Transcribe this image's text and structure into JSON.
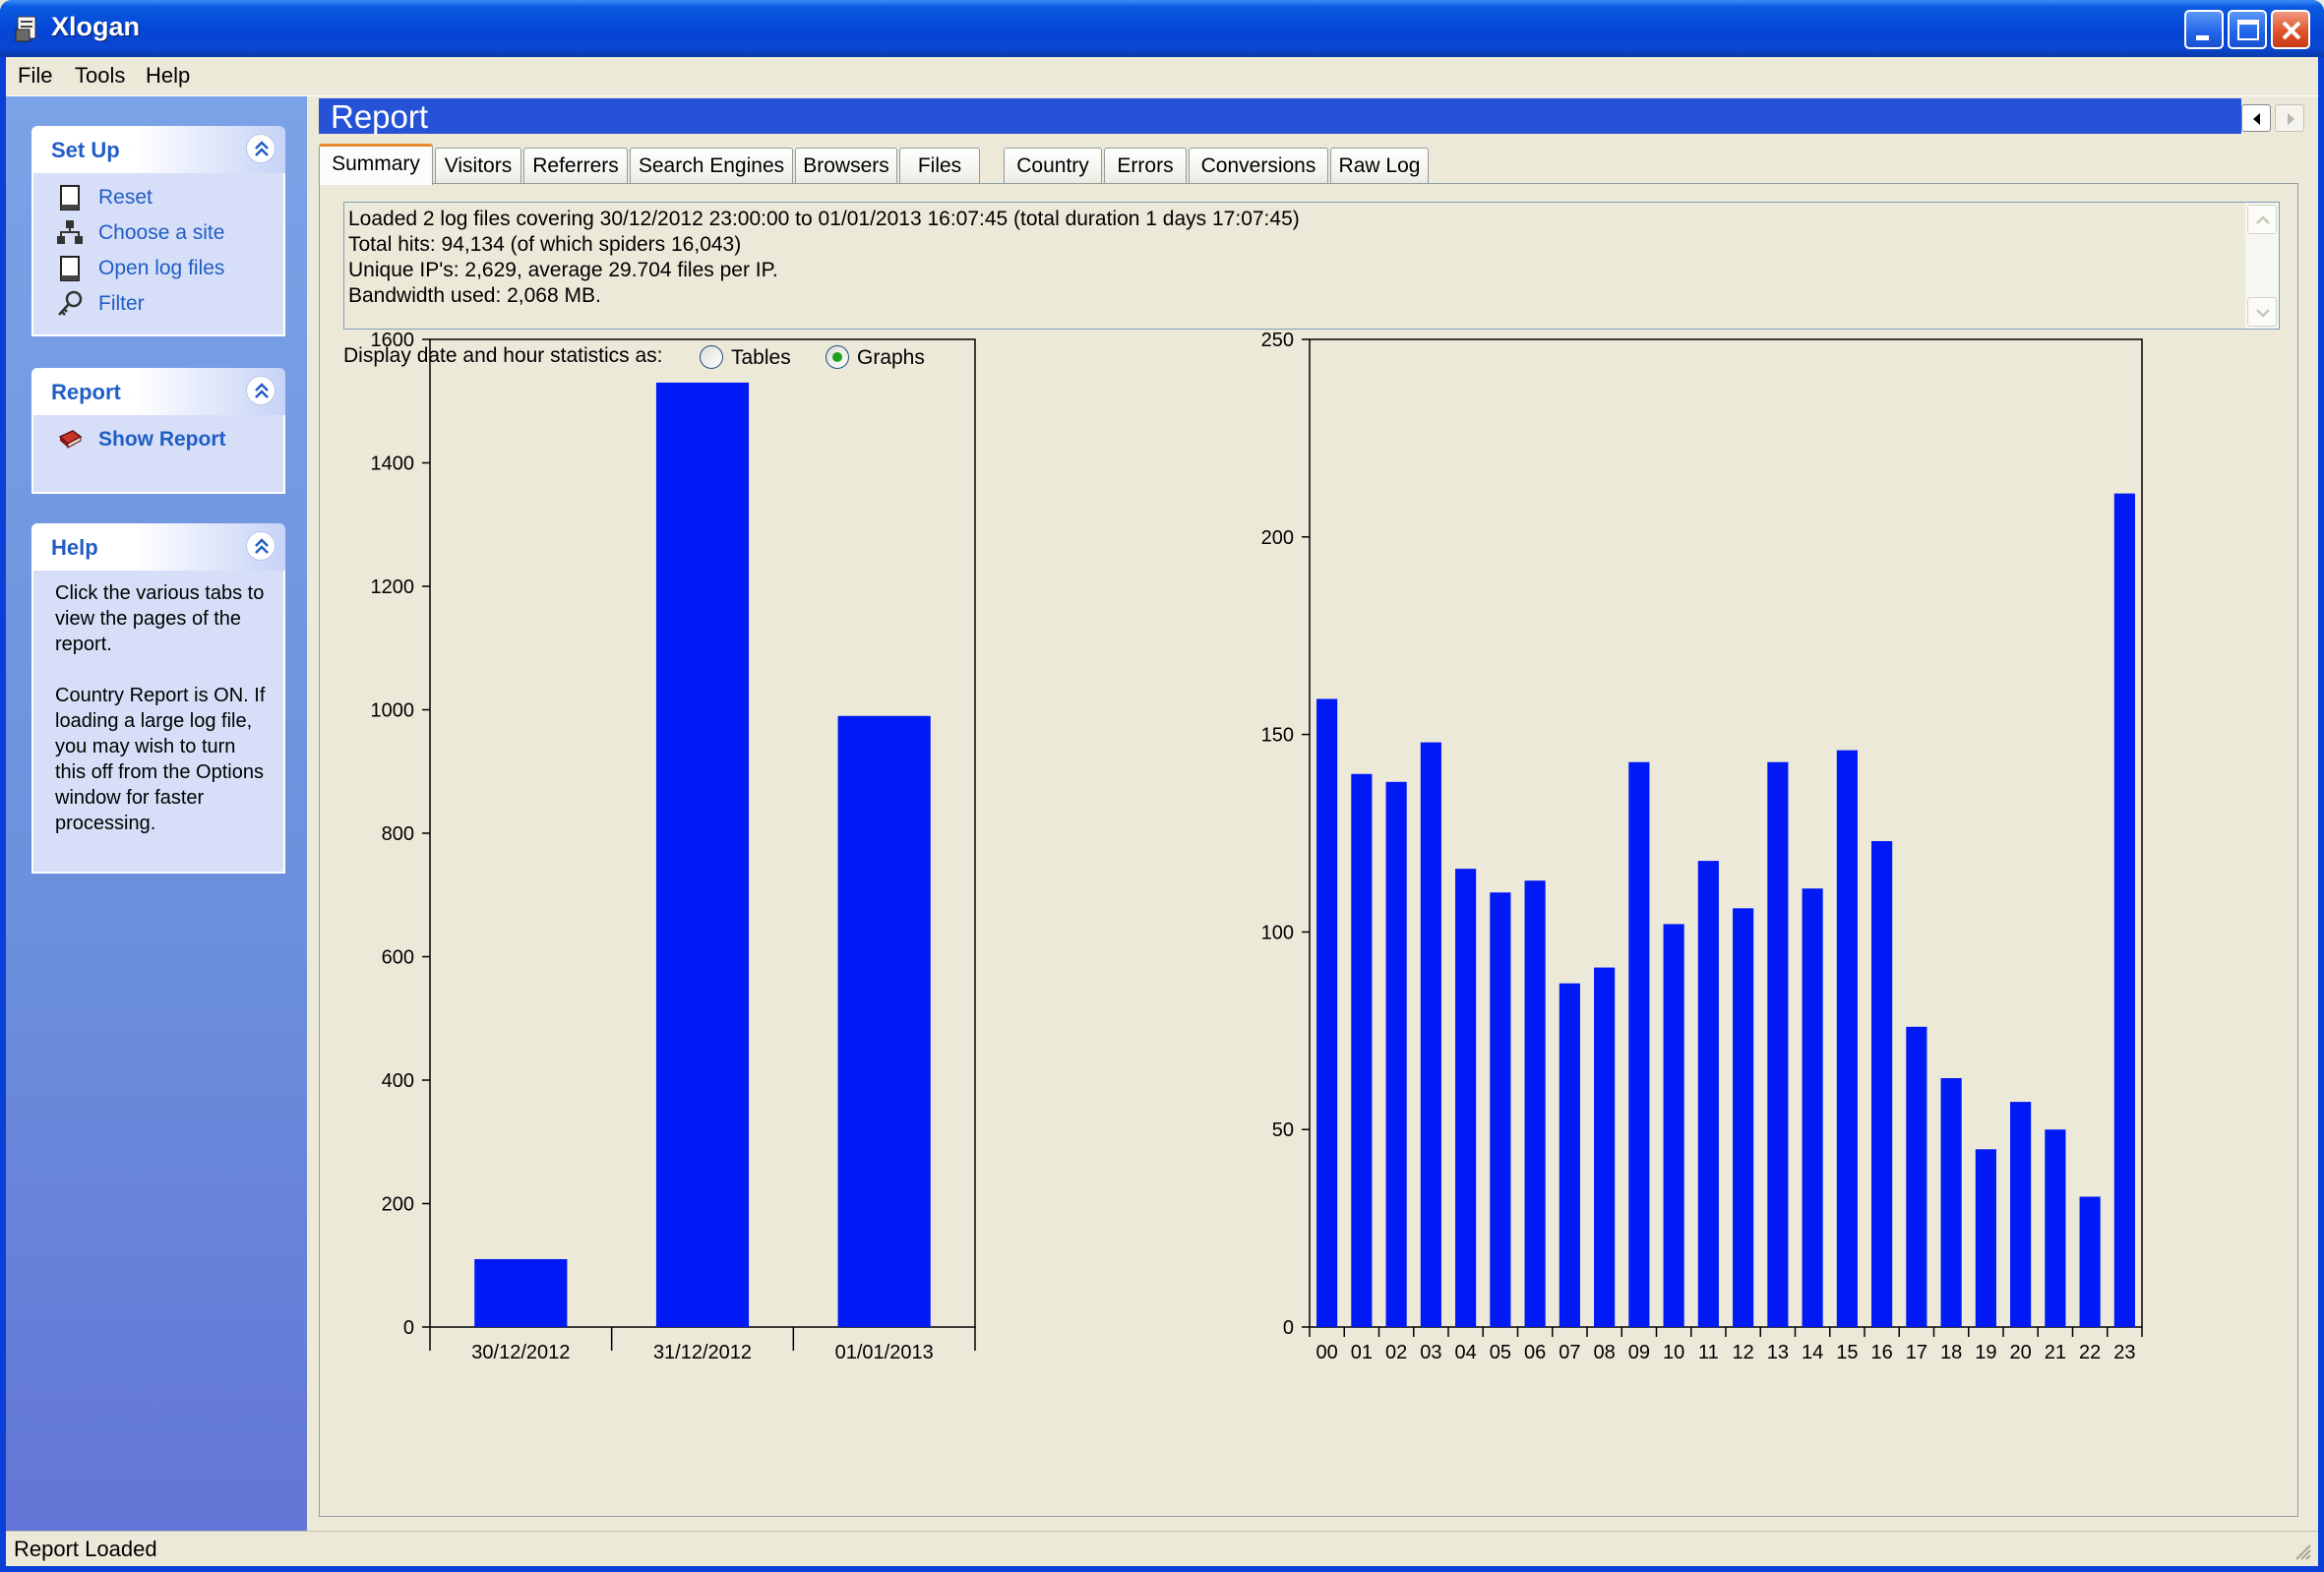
{
  "window": {
    "title": "Xlogan"
  },
  "menu": [
    "File",
    "Tools",
    "Help"
  ],
  "taskpane": {
    "setup": {
      "title": "Set Up",
      "items": [
        {
          "label": "Reset",
          "icon": "document-icon"
        },
        {
          "label": "Choose a site",
          "icon": "network-icon"
        },
        {
          "label": "Open log files",
          "icon": "document-icon"
        },
        {
          "label": "Filter",
          "icon": "key-icon"
        }
      ]
    },
    "report": {
      "title": "Report",
      "items": [
        {
          "label": "Show Report",
          "icon": "book-icon"
        }
      ]
    },
    "help": {
      "title": "Help",
      "text": "Click the various tabs to view the pages of the report.\n\nCountry Report is ON. If loading a large log file, you may wish to turn this off from the Options window for faster processing."
    }
  },
  "report": {
    "title": "Report",
    "tabs": [
      "Summary",
      "Visitors",
      "Referrers",
      "Search Engines",
      "Browsers",
      "Files",
      "Country",
      "Errors",
      "Conversions",
      "Raw Log"
    ],
    "active_tab": "Summary"
  },
  "summary": {
    "lines": [
      "Loaded 2 log files covering 30/12/2012 23:00:00 to 01/01/2013 16:07:45 (total duration 1 days 17:07:45)",
      "Total hits: 94,134 (of which spiders 16,043)",
      "Unique IP's: 2,629, average 29.704 files per IP.",
      "Bandwidth used: 2,068 MB."
    ]
  },
  "display_options": {
    "label": "Display date and hour statistics as:",
    "options": [
      "Tables",
      "Graphs"
    ],
    "selected": "Graphs"
  },
  "chart_data": [
    {
      "type": "bar",
      "categories": [
        "30/12/2012",
        "31/12/2012",
        "01/01/2013"
      ],
      "values": [
        110,
        1530,
        990
      ],
      "ylim": [
        0,
        1600
      ],
      "yticks": [
        0,
        200,
        400,
        600,
        800,
        1000,
        1200,
        1400,
        1600
      ],
      "color": "#0019f5",
      "grid": false
    },
    {
      "type": "bar",
      "categories": [
        "00",
        "01",
        "02",
        "03",
        "04",
        "05",
        "06",
        "07",
        "08",
        "09",
        "10",
        "11",
        "12",
        "13",
        "14",
        "15",
        "16",
        "17",
        "18",
        "19",
        "20",
        "21",
        "22",
        "23"
      ],
      "values": [
        159,
        140,
        138,
        148,
        116,
        110,
        113,
        87,
        91,
        143,
        102,
        118,
        106,
        143,
        111,
        146,
        123,
        76,
        63,
        45,
        57,
        50,
        33,
        211
      ],
      "ylim": [
        0,
        250
      ],
      "yticks": [
        0,
        50,
        100,
        150,
        200,
        250
      ],
      "color": "#0019f5",
      "grid": false
    }
  ],
  "statusbar": {
    "text": "Report Loaded"
  }
}
